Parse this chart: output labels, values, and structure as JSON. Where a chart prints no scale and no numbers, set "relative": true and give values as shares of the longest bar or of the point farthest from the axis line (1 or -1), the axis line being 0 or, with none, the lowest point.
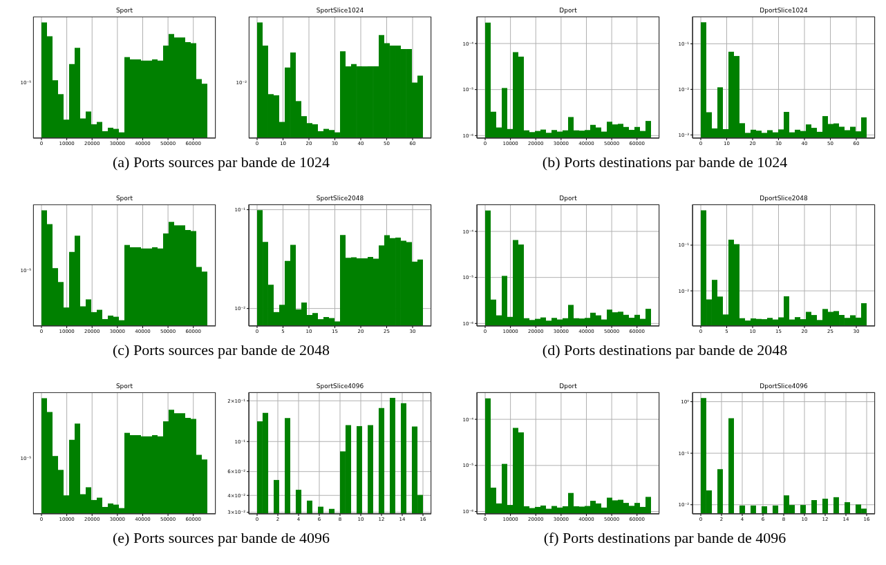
{
  "chart_data": [
    {
      "type": "bar",
      "title": "Sport",
      "relative": true,
      "color": "#008000",
      "grid": "x",
      "xlim": [
        -3277,
        68812
      ],
      "xticks": [
        0,
        10000,
        20000,
        30000,
        40000,
        50000,
        60000
      ],
      "x": [
        1092.25,
        3276.75,
        5461.25,
        7645.75,
        9830.25,
        12014.75,
        14199.25,
        16383.75,
        18568.25,
        20752.75,
        22937.25,
        25121.75,
        27306.25,
        29490.75,
        31675.25,
        33859.75,
        36044.25,
        38228.75,
        40413.25,
        42597.75,
        44782.25,
        46966.75,
        49151.25,
        51335.75,
        53520.25,
        55704.75,
        57889.25,
        60073.75,
        62258.25,
        64442.75
      ],
      "values": [
        1,
        0.88,
        0.5,
        0.38,
        0.16,
        0.64,
        0.78,
        0.17,
        0.23,
        0.12,
        0.14,
        0.06,
        0.09,
        0.08,
        0.05,
        0.7,
        0.68,
        0.68,
        0.67,
        0.67,
        0.68,
        0.67,
        0.8,
        0.9,
        0.87,
        0.87,
        0.83,
        0.82,
        0.51,
        0.47
      ],
      "annotations": [
        "(a) Ports sources par bande de 1024",
        "10⁻⁵"
      ]
    },
    {
      "type": "bar",
      "title": "SportSlice1024",
      "relative": true,
      "color": "#008000",
      "grid": "x",
      "xlim": [
        -3.2,
        67.2
      ],
      "xticks": [
        0,
        10,
        20,
        30,
        40,
        50,
        60
      ],
      "x": [
        1.07,
        3.2,
        5.33,
        7.47,
        9.6,
        11.73,
        13.87,
        16,
        18.13,
        20.27,
        22.4,
        24.53,
        26.67,
        28.8,
        30.93,
        33.07,
        35.2,
        37.33,
        39.47,
        41.6,
        43.73,
        45.87,
        48,
        50.13,
        52.27,
        54.4,
        56.53,
        58.67,
        60.8,
        62.93
      ],
      "values": [
        1,
        0.8,
        0.38,
        0.37,
        0.14,
        0.61,
        0.74,
        0.32,
        0.19,
        0.13,
        0.12,
        0.06,
        0.08,
        0.07,
        0.05,
        0.75,
        0.62,
        0.64,
        0.62,
        0.62,
        0.62,
        0.62,
        0.89,
        0.82,
        0.8,
        0.8,
        0.77,
        0.77,
        0.48,
        0.54
      ],
      "annotations": [
        "10⁻²"
      ]
    },
    {
      "type": "histogram",
      "title": "Dport",
      "log": true,
      "color": "#008000",
      "grid": true,
      "xlim": [
        -3277,
        68812
      ],
      "xticks": [
        0,
        10000,
        20000,
        30000,
        40000,
        50000,
        60000
      ],
      "ylim": [
        8.8e-07,
        0.000385
      ],
      "yticks": [
        {
          "value": 1e-06,
          "label": "10⁻⁶"
        },
        {
          "value": 1e-05,
          "label": "10⁻⁵"
        },
        {
          "value": 0.0001,
          "label": "10⁻⁴"
        }
      ],
      "bins": [
        0,
        2184.5,
        4369,
        6553.5,
        8738,
        10922.5,
        13107,
        15291.5,
        17476,
        19660.5,
        21845,
        24029.5,
        26214,
        28398.5,
        30583,
        32767.5,
        34952,
        37136.5,
        39321,
        41505.5,
        43690,
        45874.5,
        48059,
        50243.5,
        52428,
        54612.5,
        56797,
        58981.5,
        61166,
        63350.5,
        65535
      ],
      "values": [
        0.000285,
        3.3e-06,
        1.5e-06,
        1.08e-05,
        1.39e-06,
        6.5e-05,
        5.2e-05,
        1.3e-06,
        1.19e-06,
        1.26e-06,
        1.35e-06,
        1.15e-06,
        1.32e-06,
        1.22e-06,
        1.3e-06,
        2.53e-06,
        1.3e-06,
        1.28e-06,
        1.32e-06,
        1.71e-06,
        1.5e-06,
        1.22e-06,
        2e-06,
        1.75e-06,
        1.8e-06,
        1.54e-06,
        1.33e-06,
        1.54e-06,
        1.26e-06,
        2.08e-06
      ],
      "annotations": [
        "(b) Ports destinations par bande de 1024"
      ]
    },
    {
      "type": "histogram",
      "title": "DportSlice1024",
      "log": true,
      "color": "#008000",
      "grid": true,
      "xlim": [
        -3.2,
        67.2
      ],
      "xticks": [
        0,
        10,
        20,
        30,
        40,
        50,
        60
      ],
      "ylim": [
        0.00085,
        0.396
      ],
      "yticks": [
        {
          "value": 0.001,
          "label": "10⁻³"
        },
        {
          "value": 0.01,
          "label": "10⁻²"
        },
        {
          "value": 0.1,
          "label": "10⁻¹"
        }
      ],
      "bins": [
        0,
        2.13,
        4.27,
        6.4,
        8.53,
        10.67,
        12.8,
        14.93,
        17.07,
        19.2,
        21.33,
        23.47,
        25.6,
        27.73,
        29.87,
        32,
        34.13,
        36.27,
        38.4,
        40.53,
        42.67,
        44.8,
        46.93,
        49.07,
        51.2,
        53.33,
        55.47,
        57.6,
        59.73,
        61.87,
        64
      ],
      "values": [
        0.296,
        0.00316,
        0.00139,
        0.0111,
        0.00134,
        0.067,
        0.054,
        0.00181,
        0.00111,
        0.0013,
        0.00124,
        0.00111,
        0.00127,
        0.00114,
        0.00132,
        0.0032,
        0.00114,
        0.0013,
        0.00122,
        0.0017,
        0.00143,
        0.00117,
        0.00259,
        0.00174,
        0.00179,
        0.00151,
        0.00127,
        0.00151,
        0.0012,
        0.00243
      ]
    },
    {
      "type": "bar",
      "title": "Sport",
      "relative": true,
      "color": "#008000",
      "grid": "x",
      "xlim": [
        -3277,
        68812
      ],
      "xticks": [
        0,
        10000,
        20000,
        30000,
        40000,
        50000,
        60000
      ],
      "x": [
        1092.25,
        3276.75,
        5461.25,
        7645.75,
        9830.25,
        12014.75,
        14199.25,
        16383.75,
        18568.25,
        20752.75,
        22937.25,
        25121.75,
        27306.25,
        29490.75,
        31675.25,
        33859.75,
        36044.25,
        38228.75,
        40413.25,
        42597.75,
        44782.25,
        46966.75,
        49151.25,
        51335.75,
        53520.25,
        55704.75,
        57889.25,
        60073.75,
        62258.25,
        64442.75
      ],
      "values": [
        1,
        0.88,
        0.5,
        0.38,
        0.16,
        0.64,
        0.78,
        0.17,
        0.23,
        0.12,
        0.14,
        0.06,
        0.09,
        0.08,
        0.05,
        0.7,
        0.68,
        0.68,
        0.67,
        0.67,
        0.68,
        0.67,
        0.8,
        0.9,
        0.87,
        0.87,
        0.83,
        0.82,
        0.51,
        0.47
      ],
      "annotations": [
        "(c) Ports sources par bande de 2048",
        "10⁻⁵"
      ]
    },
    {
      "type": "histogram",
      "title": "SportSlice2048",
      "log": true,
      "color": "#008000",
      "grid": true,
      "xlim": [
        -1.6,
        33.6
      ],
      "xticks": [
        0,
        5,
        10,
        15,
        20,
        25,
        30
      ],
      "ylim": [
        0.00665,
        0.113
      ],
      "yticks": [
        {
          "value": 0.01,
          "label": "10⁻²"
        },
        {
          "value": 0.1,
          "label": "10⁻¹"
        }
      ],
      "bins": [
        0,
        1.07,
        2.13,
        3.2,
        4.27,
        5.33,
        6.4,
        7.47,
        8.53,
        9.6,
        10.67,
        11.73,
        12.8,
        13.87,
        14.93,
        16,
        17.07,
        18.13,
        19.2,
        20.27,
        21.33,
        22.4,
        23.47,
        24.53,
        25.6,
        26.67,
        27.73,
        28.8,
        29.87,
        30.93,
        32
      ],
      "values": [
        0.099,
        0.0472,
        0.0174,
        0.0092,
        0.0109,
        0.0303,
        0.044,
        0.0098,
        0.0115,
        0.0086,
        0.009,
        0.0078,
        0.0082,
        0.008,
        0.0074,
        0.0554,
        0.0326,
        0.033,
        0.0322,
        0.0322,
        0.0332,
        0.032,
        0.0435,
        0.0551,
        0.0516,
        0.0522,
        0.0486,
        0.047,
        0.0298,
        0.0313
      ]
    },
    {
      "type": "histogram",
      "title": "Dport",
      "log": true,
      "color": "#008000",
      "grid": true,
      "xlim": [
        -3277,
        68812
      ],
      "xticks": [
        0,
        10000,
        20000,
        30000,
        40000,
        50000,
        60000
      ],
      "ylim": [
        8.8e-07,
        0.000385
      ],
      "yticks": [
        {
          "value": 1e-06,
          "label": "10⁻⁶"
        },
        {
          "value": 1e-05,
          "label": "10⁻⁵"
        },
        {
          "value": 0.0001,
          "label": "10⁻⁴"
        }
      ],
      "bins": [
        0,
        2184.5,
        4369,
        6553.5,
        8738,
        10922.5,
        13107,
        15291.5,
        17476,
        19660.5,
        21845,
        24029.5,
        26214,
        28398.5,
        30583,
        32767.5,
        34952,
        37136.5,
        39321,
        41505.5,
        43690,
        45874.5,
        48059,
        50243.5,
        52428,
        54612.5,
        56797,
        58981.5,
        61166,
        63350.5,
        65535
      ],
      "values": [
        0.000285,
        3.3e-06,
        1.5e-06,
        1.08e-05,
        1.39e-06,
        6.5e-05,
        5.2e-05,
        1.3e-06,
        1.19e-06,
        1.26e-06,
        1.35e-06,
        1.15e-06,
        1.32e-06,
        1.22e-06,
        1.3e-06,
        2.53e-06,
        1.3e-06,
        1.28e-06,
        1.32e-06,
        1.71e-06,
        1.5e-06,
        1.22e-06,
        2e-06,
        1.75e-06,
        1.8e-06,
        1.54e-06,
        1.33e-06,
        1.54e-06,
        1.26e-06,
        2.08e-06
      ],
      "annotations": [
        "(d) Ports destinations par bande de 2048"
      ]
    },
    {
      "type": "histogram",
      "title": "DportSlice2048",
      "log": true,
      "color": "#008000",
      "grid": true,
      "xlim": [
        -1.6,
        33.6
      ],
      "xticks": [
        0,
        5,
        10,
        15,
        20,
        25,
        30
      ],
      "ylim": [
        0.0017,
        0.778
      ],
      "yticks": [
        {
          "value": 0.01,
          "label": "10⁻²"
        },
        {
          "value": 0.1,
          "label": "10⁻¹"
        }
      ],
      "bins": [
        0,
        1.07,
        2.13,
        3.2,
        4.27,
        5.33,
        6.4,
        7.47,
        8.53,
        9.6,
        10.67,
        11.73,
        12.8,
        13.87,
        14.93,
        16,
        17.07,
        18.13,
        19.2,
        20.27,
        21.33,
        22.4,
        23.47,
        24.53,
        25.6,
        26.67,
        27.73,
        28.8,
        29.87,
        30.93,
        32
      ],
      "values": [
        0.581,
        0.0065,
        0.0174,
        0.0075,
        0.00304,
        0.132,
        0.105,
        0.00252,
        0.00224,
        0.00249,
        0.00243,
        0.0024,
        0.00256,
        0.00236,
        0.00263,
        0.0076,
        0.00236,
        0.00266,
        0.0024,
        0.00347,
        0.00296,
        0.0023,
        0.00401,
        0.00347,
        0.00361,
        0.00296,
        0.00256,
        0.00292,
        0.00259,
        0.00537
      ]
    },
    {
      "type": "bar",
      "title": "Sport",
      "relative": true,
      "color": "#008000",
      "grid": "x",
      "xlim": [
        -3277,
        68812
      ],
      "xticks": [
        0,
        10000,
        20000,
        30000,
        40000,
        50000,
        60000
      ],
      "x": [
        1092.25,
        3276.75,
        5461.25,
        7645.75,
        9830.25,
        12014.75,
        14199.25,
        16383.75,
        18568.25,
        20752.75,
        22937.25,
        25121.75,
        27306.25,
        29490.75,
        31675.25,
        33859.75,
        36044.25,
        38228.75,
        40413.25,
        42597.75,
        44782.25,
        46966.75,
        49151.25,
        51335.75,
        53520.25,
        55704.75,
        57889.25,
        60073.75,
        62258.25,
        64442.75
      ],
      "values": [
        1,
        0.88,
        0.5,
        0.38,
        0.16,
        0.64,
        0.78,
        0.17,
        0.23,
        0.12,
        0.14,
        0.06,
        0.09,
        0.08,
        0.05,
        0.7,
        0.68,
        0.68,
        0.67,
        0.67,
        0.68,
        0.67,
        0.8,
        0.9,
        0.87,
        0.87,
        0.83,
        0.82,
        0.51,
        0.47
      ],
      "annotations": [
        "(e) Ports sources par bande de 4096",
        "10⁻⁵"
      ]
    },
    {
      "type": "histogram",
      "title": "SportSlice4096",
      "log": true,
      "color": "#008000",
      "grid": true,
      "xlim": [
        -0.8,
        16.8
      ],
      "xticks": [
        0,
        2,
        4,
        6,
        8,
        10,
        12,
        14,
        16
      ],
      "ylim": [
        0.0292,
        0.231
      ],
      "yticks": [
        {
          "value": 0.03,
          "label": "3×10⁻²"
        },
        {
          "value": 0.04,
          "label": "4×10⁻²"
        },
        {
          "value": 0.06,
          "label": "6×10⁻²"
        },
        {
          "value": 0.1,
          "label": "10⁻¹"
        },
        {
          "value": 0.2,
          "label": "2×10⁻¹"
        }
      ],
      "bins": [
        0,
        0.53,
        1.07,
        1.6,
        2.13,
        2.67,
        3.2,
        3.73,
        4.27,
        4.8,
        5.33,
        5.87,
        6.4,
        6.93,
        7.47,
        8,
        8.53,
        9.07,
        9.6,
        10.13,
        10.67,
        11.2,
        11.73,
        12.27,
        12.8,
        13.33,
        13.87,
        14.4,
        14.93,
        15.47,
        16
      ],
      "values": [
        0.141,
        0.163,
        null,
        0.052,
        null,
        0.149,
        null,
        0.044,
        null,
        0.0366,
        null,
        0.033,
        null,
        0.0318,
        null,
        0.0846,
        0.132,
        null,
        0.13,
        null,
        0.132,
        null,
        0.177,
        null,
        0.21,
        null,
        0.192,
        null,
        0.129,
        0.0403
      ]
    },
    {
      "type": "histogram",
      "title": "Dport",
      "log": true,
      "color": "#008000",
      "grid": true,
      "xlim": [
        -3277,
        68812
      ],
      "xticks": [
        0,
        10000,
        20000,
        30000,
        40000,
        50000,
        60000
      ],
      "ylim": [
        8.9e-07,
        0.000385
      ],
      "yticks": [
        {
          "value": 1e-06,
          "label": "10⁻⁶"
        },
        {
          "value": 1e-05,
          "label": "10⁻⁵"
        },
        {
          "value": 0.0001,
          "label": "10⁻⁴"
        }
      ],
      "bins": [
        0,
        2184.5,
        4369,
        6553.5,
        8738,
        10922.5,
        13107,
        15291.5,
        17476,
        19660.5,
        21845,
        24029.5,
        26214,
        28398.5,
        30583,
        32767.5,
        34952,
        37136.5,
        39321,
        41505.5,
        43690,
        45874.5,
        48059,
        50243.5,
        52428,
        54612.5,
        56797,
        58981.5,
        61166,
        63350.5,
        65535
      ],
      "values": [
        0.000285,
        3.3e-06,
        1.5e-06,
        1.08e-05,
        1.39e-06,
        6.5e-05,
        5.2e-05,
        1.3e-06,
        1.19e-06,
        1.26e-06,
        1.35e-06,
        1.15e-06,
        1.32e-06,
        1.22e-06,
        1.3e-06,
        2.53e-06,
        1.3e-06,
        1.28e-06,
        1.32e-06,
        1.71e-06,
        1.5e-06,
        1.22e-06,
        2e-06,
        1.75e-06,
        1.8e-06,
        1.54e-06,
        1.33e-06,
        1.54e-06,
        1.26e-06,
        2.08e-06
      ],
      "annotations": [
        "(f) Ports destinations par bande de 4096"
      ]
    },
    {
      "type": "histogram",
      "title": "DportSlice4096",
      "log": true,
      "color": "#008000",
      "grid": true,
      "xlim": [
        -0.8,
        16.8
      ],
      "xticks": [
        0,
        2,
        4,
        6,
        8,
        10,
        12,
        14,
        16
      ],
      "ylim": [
        0.00664,
        1.52
      ],
      "yticks": [
        {
          "value": 0.01,
          "label": "10⁻²"
        },
        {
          "value": 0.1,
          "label": "10⁻¹"
        },
        {
          "value": 1,
          "label": "10⁰"
        }
      ],
      "bins": [
        0,
        0.53,
        1.07,
        1.6,
        2.13,
        2.67,
        3.2,
        3.73,
        4.27,
        4.8,
        5.33,
        5.87,
        6.4,
        6.93,
        7.47,
        8,
        8.53,
        9.07,
        9.6,
        10.13,
        10.67,
        11.2,
        11.73,
        12.27,
        12.8,
        13.33,
        13.87,
        14.4,
        14.93,
        15.47,
        16
      ],
      "values": [
        1.18,
        0.019,
        null,
        0.049,
        null,
        0.479,
        null,
        0.00966,
        null,
        0.00966,
        null,
        0.00933,
        null,
        0.00966,
        null,
        0.0152,
        0.00988,
        null,
        0.00988,
        null,
        0.0123,
        null,
        0.0131,
        null,
        0.014,
        null,
        0.0112,
        null,
        0.0101,
        0.0084
      ]
    }
  ]
}
